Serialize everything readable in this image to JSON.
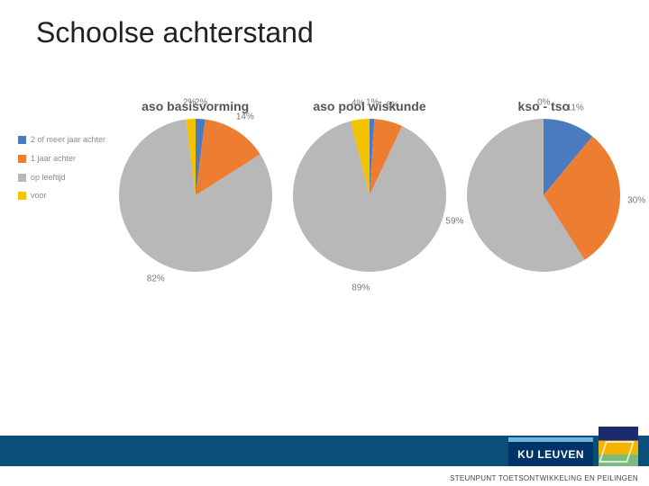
{
  "title": "Schoolse achterstand",
  "footer_text": "STEUNPUNT TOETSONTWIKKELING EN PEILINGEN",
  "kuleuven_label": "KU LEUVEN",
  "palette": {
    "two_or_more": "#4b7bbf",
    "one_year": "#ed7d31",
    "on_age": "#b8b8b8",
    "ahead": "#f4c300"
  },
  "legend": [
    {
      "key": "two_or_more",
      "label": "2 of meer jaar achter"
    },
    {
      "key": "one_year",
      "label": "1 jaar achter"
    },
    {
      "key": "on_age",
      "label": "op leeftijd"
    },
    {
      "key": "ahead",
      "label": "voor"
    }
  ],
  "charts": [
    {
      "title": "aso basisvorming",
      "type": "pie",
      "slices": [
        {
          "key": "two_or_more",
          "value": 2,
          "label": "2%"
        },
        {
          "key": "one_year",
          "value": 14,
          "label": "14%"
        },
        {
          "key": "on_age",
          "value": 82,
          "label": "82%"
        },
        {
          "key": "ahead",
          "value": 2,
          "label": "2%"
        }
      ],
      "label_fontsize": 10,
      "title_fontsize": 14
    },
    {
      "title": "aso pool wiskunde",
      "type": "pie",
      "slices": [
        {
          "key": "two_or_more",
          "value": 1,
          "label": "1%"
        },
        {
          "key": "one_year",
          "value": 6,
          "label": "6%"
        },
        {
          "key": "on_age",
          "value": 89,
          "label": "89%"
        },
        {
          "key": "ahead",
          "value": 4,
          "label": "4%"
        }
      ],
      "label_fontsize": 10,
      "title_fontsize": 14
    },
    {
      "title": "kso - tso",
      "type": "pie",
      "slices": [
        {
          "key": "two_or_more",
          "value": 11,
          "label": "11%"
        },
        {
          "key": "one_year",
          "value": 30,
          "label": "30%"
        },
        {
          "key": "on_age",
          "value": 59,
          "label": "59%"
        },
        {
          "key": "ahead",
          "value": 0,
          "label": "0%"
        }
      ],
      "label_fontsize": 10,
      "title_fontsize": 14
    }
  ],
  "colors": {
    "title_text": "#222222",
    "label_text": "#777777",
    "legend_text": "#8c8c8c",
    "footer_bar": "#0a4e7a",
    "kuleuven_bg": "#003469",
    "kuleuven_accent": "#6fb6d8",
    "background": "#ffffff"
  }
}
